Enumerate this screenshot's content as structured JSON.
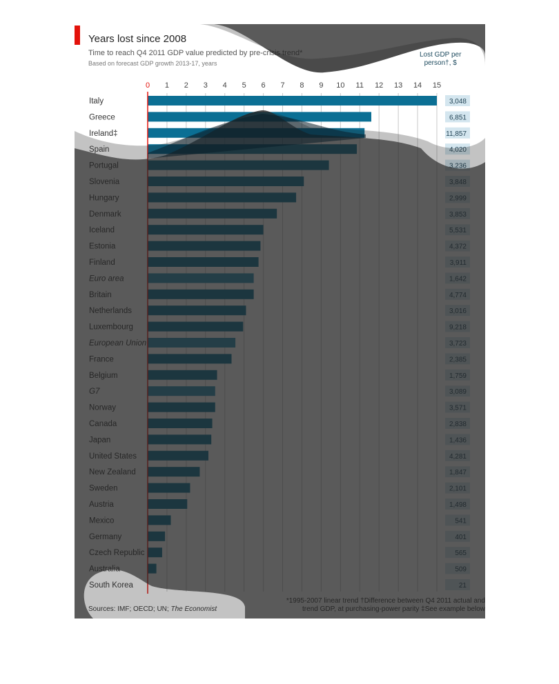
{
  "header": {
    "title": "Years lost since 2008",
    "subtitle": "Time to reach Q4 2011 GDP value predicted by pre-crisis trend*",
    "subtitle2": "Based on forecast GDP growth 2013-17, years",
    "value_column_line1": "Lost GDP per",
    "value_column_line2": "person†, $"
  },
  "footer": {
    "sources_prefix": "Sources: IMF; OECD; UN; ",
    "sources_italic": "The Economist",
    "note_line1": "*1995-2007 linear trend   †Difference between Q4 2011 actual and",
    "note_line2": "trend GDP, at purchasing-power parity  ‡See example below"
  },
  "colors": {
    "bar": "#0b6f94",
    "aggregate_bar": "#2b8fb5",
    "value_box": "#d4e6ef",
    "zero_line": "#e3120b",
    "accent": "#e3120b"
  },
  "chart_data": {
    "type": "bar",
    "orientation": "horizontal",
    "title": "Years lost since 2008",
    "xlabel": "years",
    "xlim": [
      0,
      15
    ],
    "xticks": [
      0,
      1,
      2,
      3,
      4,
      5,
      6,
      7,
      8,
      9,
      10,
      11,
      12,
      13,
      14,
      15
    ],
    "grid": true,
    "categories": [
      "Italy",
      "Greece",
      "Ireland‡",
      "Spain",
      "Portugal",
      "Slovenia",
      "Hungary",
      "Denmark",
      "Iceland",
      "Estonia",
      "Finland",
      "Euro area",
      "Britain",
      "Netherlands",
      "Luxembourg",
      "European Union",
      "France",
      "Belgium",
      "G7",
      "Norway",
      "Canada",
      "Japan",
      "United States",
      "New Zealand",
      "Sweden",
      "Austria",
      "Mexico",
      "Germany",
      "Czech Republic",
      "Australia",
      "South Korea"
    ],
    "aggregates": [
      "Euro area",
      "European Union",
      "G7"
    ],
    "values": [
      15,
      11.6,
      11.25,
      10.85,
      9.4,
      8.1,
      7.7,
      6.7,
      6.0,
      5.85,
      5.75,
      5.5,
      5.5,
      5.1,
      4.95,
      4.55,
      4.35,
      3.6,
      3.5,
      3.5,
      3.35,
      3.3,
      3.15,
      2.7,
      2.2,
      2.05,
      1.2,
      0.9,
      0.75,
      0.45,
      0
    ],
    "lost_gdp_per_person": [
      "3,048",
      "6,851",
      "11,857",
      "4,020",
      "3,236",
      "3,848",
      "2,999",
      "3,853",
      "5,531",
      "4,372",
      "3,911",
      "1,642",
      "4,774",
      "3,016",
      "9,218",
      "3,723",
      "2,385",
      "1,759",
      "3,089",
      "3,571",
      "2,838",
      "1,436",
      "4,281",
      "1,847",
      "2,101",
      "1,498",
      "541",
      "401",
      "565",
      "509",
      "21"
    ]
  }
}
